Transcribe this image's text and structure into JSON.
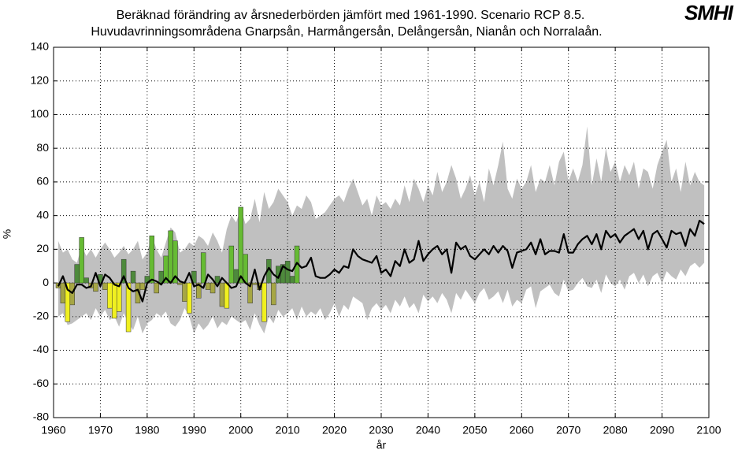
{
  "chart_data": {
    "type": "line",
    "title": "Beräknad förändring av årsnederbörden jämfört med 1961-1990. Scenario RCP 8.5.",
    "subtitle": "Huvudavrinningsområdena Gnarpsån, Harmångersån, Delångersån, Nianån och Norralaån.",
    "logo": "SMHI",
    "x_label": "år",
    "y_label": "%",
    "xlim": [
      1960,
      2100
    ],
    "xticks": [
      1960,
      1970,
      1980,
      1990,
      2000,
      2010,
      2020,
      2030,
      2040,
      2050,
      2060,
      2070,
      2080,
      2090,
      2100
    ],
    "ylim": [
      -80,
      140
    ],
    "yticks": [
      -80,
      -60,
      -40,
      -20,
      0,
      20,
      40,
      60,
      80,
      100,
      120,
      140
    ],
    "grid": true,
    "x": [
      1961,
      1962,
      1963,
      1964,
      1965,
      1966,
      1967,
      1968,
      1969,
      1970,
      1971,
      1972,
      1973,
      1974,
      1975,
      1976,
      1977,
      1978,
      1979,
      1980,
      1981,
      1982,
      1983,
      1984,
      1985,
      1986,
      1987,
      1988,
      1989,
      1990,
      1991,
      1992,
      1993,
      1994,
      1995,
      1996,
      1997,
      1998,
      1999,
      2000,
      2001,
      2002,
      2003,
      2004,
      2005,
      2006,
      2007,
      2008,
      2009,
      2010,
      2011,
      2012,
      2013,
      2014,
      2015,
      2016,
      2017,
      2018,
      2019,
      2020,
      2021,
      2022,
      2023,
      2024,
      2025,
      2026,
      2027,
      2028,
      2029,
      2030,
      2031,
      2032,
      2033,
      2034,
      2035,
      2036,
      2037,
      2038,
      2039,
      2040,
      2041,
      2042,
      2043,
      2044,
      2045,
      2046,
      2047,
      2048,
      2049,
      2050,
      2051,
      2052,
      2053,
      2054,
      2055,
      2056,
      2057,
      2058,
      2059,
      2060,
      2061,
      2062,
      2063,
      2064,
      2065,
      2066,
      2067,
      2068,
      2069,
      2070,
      2071,
      2072,
      2073,
      2074,
      2075,
      2076,
      2077,
      2078,
      2079,
      2080,
      2081,
      2082,
      2083,
      2084,
      2085,
      2086,
      2087,
      2088,
      2089,
      2090,
      2091,
      2092,
      2093,
      2094,
      2095,
      2096,
      2097,
      2098,
      2099
    ],
    "band": {
      "color": "#c0c0c0",
      "upper": [
        25,
        18,
        20,
        14,
        12,
        22,
        16,
        20,
        15,
        20,
        24,
        20,
        15,
        18,
        22,
        17,
        20,
        25,
        14,
        18,
        28,
        20,
        15,
        24,
        33,
        30,
        18,
        20,
        24,
        22,
        28,
        26,
        22,
        30,
        25,
        18,
        32,
        40,
        36,
        44,
        35,
        38,
        50,
        36,
        54,
        44,
        48,
        56,
        52,
        48,
        40,
        46,
        44,
        52,
        48,
        38,
        40,
        42,
        46,
        50,
        52,
        48,
        56,
        62,
        54,
        46,
        50,
        40,
        52,
        46,
        48,
        44,
        50,
        46,
        58,
        48,
        62,
        56,
        48,
        58,
        52,
        66,
        54,
        60,
        70,
        62,
        50,
        56,
        64,
        52,
        60,
        48,
        68,
        58,
        70,
        84,
        56,
        50,
        62,
        56,
        60,
        70,
        54,
        62,
        60,
        70,
        58,
        72,
        78,
        60,
        68,
        60,
        70,
        93,
        58,
        74,
        60,
        80,
        66,
        72,
        60,
        70,
        64,
        72,
        56,
        68,
        66,
        56,
        70,
        78,
        85,
        60,
        68,
        54,
        72,
        58,
        66,
        60,
        58
      ],
      "lower": [
        -20,
        -18,
        -25,
        -24,
        -22,
        -20,
        -18,
        -22,
        -15,
        -20,
        -16,
        -22,
        -20,
        -26,
        -18,
        -24,
        -28,
        -20,
        -30,
        -24,
        -22,
        -18,
        -20,
        -17,
        -24,
        -26,
        -22,
        -15,
        -20,
        -30,
        -24,
        -28,
        -25,
        -20,
        -27,
        -23,
        -25,
        -20,
        -22,
        -24,
        -22,
        -28,
        -18,
        -25,
        -30,
        -20,
        -24,
        -16,
        -20,
        -18,
        -15,
        -22,
        -14,
        -20,
        -17,
        -19,
        -15,
        -22,
        -18,
        -12,
        -20,
        -13,
        -16,
        -8,
        -10,
        -12,
        -22,
        -15,
        -12,
        -16,
        -13,
        -18,
        -10,
        -14,
        -8,
        -15,
        -12,
        -18,
        -7,
        -11,
        -8,
        -12,
        -6,
        -10,
        -18,
        -6,
        -10,
        -4,
        -8,
        -12,
        -6,
        -3,
        -10,
        -8,
        -5,
        -12,
        -4,
        -14,
        -10,
        -12,
        -4,
        -2,
        -15,
        -5,
        -3,
        -1,
        -6,
        -8,
        2,
        -5,
        -4,
        0,
        3,
        -2,
        -3,
        2,
        -6,
        5,
        0,
        -2,
        2,
        -4,
        4,
        6,
        0,
        5,
        -2,
        4,
        6,
        0,
        7,
        4,
        2,
        8,
        4,
        10,
        12,
        9,
        12
      ]
    },
    "series": [
      {
        "color": "#000000",
        "values": [
          -2,
          4,
          -4,
          -6,
          -1,
          -1,
          -3,
          -2,
          6,
          -2,
          5,
          3,
          -1,
          -2,
          4,
          -3,
          -5,
          -4,
          -11,
          0,
          2,
          1,
          -1,
          3,
          0,
          4,
          1,
          0,
          6,
          -2,
          -1,
          -3,
          5,
          2,
          -2,
          3,
          0,
          -3,
          -2,
          4,
          0,
          -2,
          8,
          -4,
          4,
          9,
          5,
          3,
          10,
          8,
          7,
          12,
          9,
          10,
          15,
          4,
          3,
          3,
          5,
          8,
          6,
          10,
          9,
          20,
          16,
          14,
          13,
          12,
          16,
          6,
          8,
          4,
          13,
          10,
          20,
          12,
          14,
          25,
          13,
          17,
          20,
          22,
          17,
          20,
          6,
          24,
          20,
          22,
          16,
          14,
          17,
          20,
          17,
          22,
          18,
          22,
          19,
          9,
          18,
          19,
          20,
          24,
          17,
          26,
          17,
          19,
          19,
          18,
          29,
          18,
          18,
          23,
          26,
          28,
          23,
          29,
          20,
          31,
          27,
          29,
          24,
          28,
          30,
          32,
          26,
          31,
          20,
          29,
          31,
          26,
          21,
          31,
          29,
          30,
          22,
          32,
          28,
          37,
          35
        ]
      }
    ],
    "bars": {
      "x": [
        1961,
        1962,
        1963,
        1964,
        1965,
        1966,
        1967,
        1968,
        1969,
        1970,
        1971,
        1972,
        1973,
        1974,
        1975,
        1976,
        1977,
        1978,
        1979,
        1980,
        1981,
        1982,
        1983,
        1984,
        1985,
        1986,
        1987,
        1988,
        1989,
        1990,
        1991,
        1992,
        1993,
        1994,
        1995,
        1996,
        1997,
        1998,
        1999,
        2000,
        2001,
        2002,
        2003,
        2004,
        2005,
        2006,
        2007,
        2008,
        2009,
        2010,
        2011,
        2012
      ],
      "values": [
        -3,
        -12,
        -23,
        -13,
        11,
        27,
        3,
        -3,
        -5,
        5,
        -4,
        -15,
        -21,
        -17,
        14,
        -29,
        7,
        -12,
        -4,
        4,
        28,
        -6,
        7,
        16,
        31,
        25,
        -1,
        -11,
        -18,
        7,
        -9,
        18,
        -4,
        -6,
        4,
        -14,
        -15,
        22,
        8,
        45,
        17,
        -12,
        -1,
        -4,
        -23,
        14,
        -13,
        10,
        11,
        13,
        4,
        22
      ],
      "colors": [
        "#a6a644",
        "#a6a644",
        "#f0f020",
        "#a6a644",
        "#4e8a3c",
        "#66bb33",
        "#4e8a3c",
        "#a6a644",
        "#a6a644",
        "#4e8a3c",
        "#a6a644",
        "#f0f020",
        "#f0f020",
        "#f0f020",
        "#4e8a3c",
        "#f0f020",
        "#4e8a3c",
        "#a6a644",
        "#a6a644",
        "#4e8a3c",
        "#66bb33",
        "#a6a644",
        "#4e8a3c",
        "#66bb33",
        "#66bb33",
        "#66bb33",
        "#a6a644",
        "#a6a644",
        "#f0f020",
        "#4e8a3c",
        "#a6a644",
        "#66bb33",
        "#a6a644",
        "#a6a644",
        "#4e8a3c",
        "#a6a644",
        "#f0f020",
        "#66bb33",
        "#4e8a3c",
        "#66bb33",
        "#66bb33",
        "#a6a644",
        "#a6a644",
        "#a6a644",
        "#f0f020",
        "#4e8a3c",
        "#a6a644",
        "#4e8a3c",
        "#4e8a3c",
        "#4e8a3c",
        "#4e8a3c",
        "#66bb33"
      ]
    }
  }
}
